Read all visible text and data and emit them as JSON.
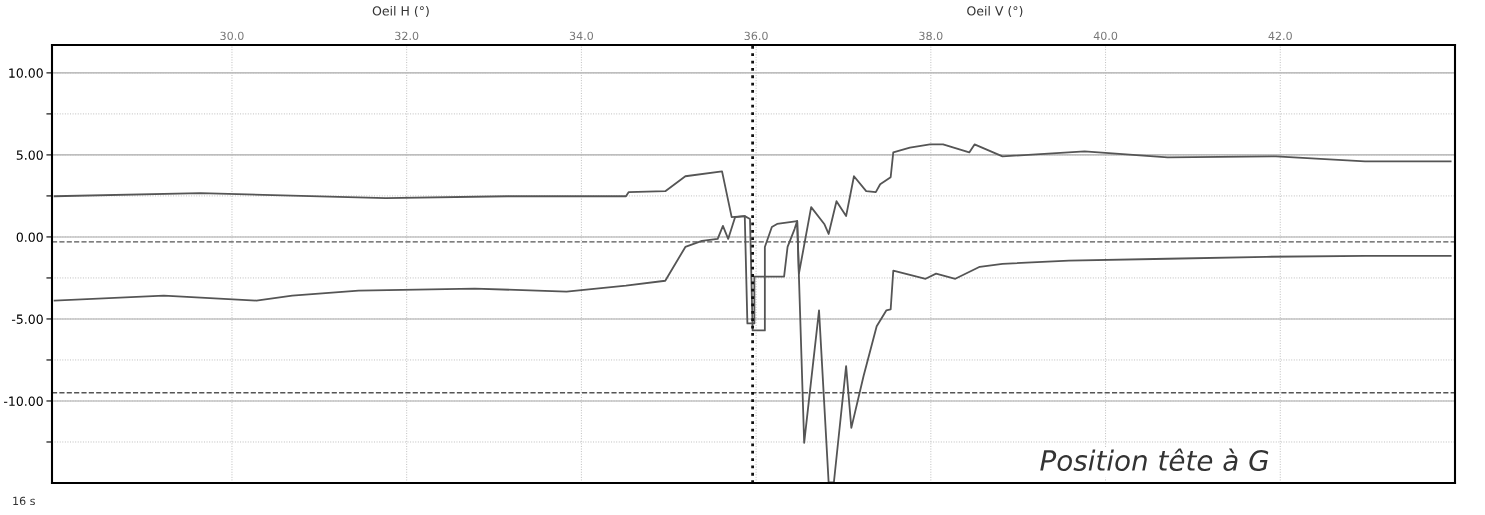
{
  "chart_data": {
    "type": "line",
    "annotations": [
      "Oeil H (°)",
      "Oeil V (°)",
      "16 s",
      "Position tête à G"
    ],
    "xlim": [
      27.94,
      44.0
    ],
    "ylim": [
      -15.0,
      11.7
    ],
    "xticks": [
      {
        "value": 30,
        "label": "30.0"
      },
      {
        "value": 32,
        "label": "32.0"
      },
      {
        "value": 34,
        "label": "34.0"
      },
      {
        "value": 36,
        "label": "36.0"
      },
      {
        "value": 38,
        "label": "38.0"
      },
      {
        "value": 40,
        "label": "40.0"
      },
      {
        "value": 42,
        "label": "42.0"
      }
    ],
    "yticks": [
      {
        "value": 10,
        "label": "10.00"
      },
      {
        "value": 7.5,
        "label": null
      },
      {
        "value": 5,
        "label": "5.00"
      },
      {
        "value": 2.5,
        "label": null
      },
      {
        "value": 0,
        "label": "0.00"
      },
      {
        "value": -2.5,
        "label": null
      },
      {
        "value": -5,
        "label": "-5.00"
      },
      {
        "value": -7.5,
        "label": null
      },
      {
        "value": -10,
        "label": "-10.00"
      },
      {
        "value": -12.5,
        "label": null
      }
    ],
    "grid": true,
    "marker": "none",
    "line_style": "solid",
    "ref_lines": [
      {
        "axis": "y",
        "value": -0.3,
        "line_style": "dashed",
        "color": "#555555"
      },
      {
        "axis": "y",
        "value": -9.5,
        "line_style": "dashed",
        "color": "#555555"
      },
      {
        "axis": "x",
        "value": 35.96,
        "line_style": "dotted",
        "color": "#111111"
      }
    ],
    "series": [
      {
        "color": "#555555",
        "x": [
          27.97,
          29.64,
          31.76,
          33.15,
          34.51,
          34.54,
          34.96,
          35.19,
          35.61,
          35.72,
          35.87,
          35.93,
          35.96,
          36.1,
          36.1,
          36.18,
          36.24,
          36.47,
          36.49,
          36.63,
          36.78,
          36.83,
          36.92,
          37.03,
          37.12,
          37.26,
          37.37,
          37.42,
          37.54,
          37.57,
          37.76,
          37.99,
          38.14,
          38.44,
          38.5,
          38.82,
          39.76,
          40.71,
          41.95,
          42.97,
          43.95
        ],
        "values": [
          2.48,
          2.67,
          2.36,
          2.48,
          2.48,
          2.73,
          2.79,
          3.7,
          4.0,
          1.21,
          1.27,
          1.09,
          -5.7,
          -5.7,
          -0.61,
          0.61,
          0.79,
          0.97,
          -2.24,
          1.82,
          0.79,
          0.18,
          2.18,
          1.27,
          3.7,
          2.79,
          2.73,
          3.21,
          3.64,
          5.15,
          5.45,
          5.64,
          5.64,
          5.15,
          5.64,
          4.91,
          5.21,
          4.85,
          4.91,
          4.61,
          4.61
        ]
      },
      {
        "color": "#555555",
        "x": [
          27.97,
          29.22,
          30.28,
          30.69,
          31.45,
          32.78,
          33.83,
          34.51,
          34.96,
          35.19,
          35.38,
          35.56,
          35.62,
          35.68,
          35.76,
          35.87,
          35.9,
          35.98,
          35.98,
          36.32,
          36.36,
          36.44,
          36.47,
          36.55,
          36.72,
          36.83,
          36.89,
          37.03,
          37.09,
          37.23,
          37.38,
          37.49,
          37.54,
          37.57,
          37.94,
          38.06,
          38.28,
          38.56,
          38.82,
          39.58,
          40.71,
          41.84,
          42.97,
          43.95
        ],
        "values": [
          -3.88,
          -3.58,
          -3.88,
          -3.58,
          -3.27,
          -3.15,
          -3.33,
          -2.97,
          -2.67,
          -0.61,
          -0.24,
          -0.12,
          0.67,
          -0.12,
          1.21,
          1.27,
          -5.27,
          -5.27,
          -2.42,
          -2.42,
          -0.61,
          0.48,
          0.97,
          -12.55,
          -4.48,
          -14.97,
          -14.97,
          -7.88,
          -11.64,
          -8.48,
          -5.45,
          -4.48,
          -4.42,
          -2.06,
          -2.55,
          -2.24,
          -2.55,
          -1.82,
          -1.64,
          -1.45,
          -1.33,
          -1.21,
          -1.15,
          -1.15
        ]
      }
    ]
  }
}
